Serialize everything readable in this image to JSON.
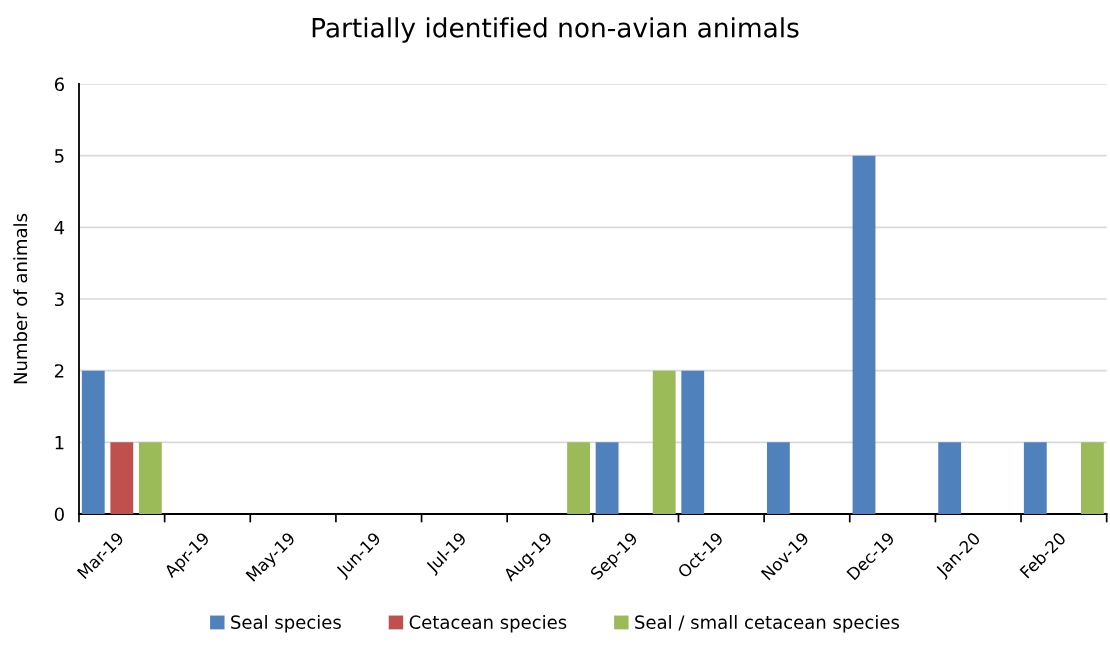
{
  "chart_data": {
    "type": "bar",
    "title": "Partially identified non-avian animals",
    "ylabel": "Number of animals",
    "categories": [
      "Mar-19",
      "Apr-19",
      "May-19",
      "Jun-19",
      "Jul-19",
      "Aug-19",
      "Sep-19",
      "Oct-19",
      "Nov-19",
      "Dec-19",
      "Jan-20",
      "Feb-20"
    ],
    "series": [
      {
        "name": "Seal species",
        "color": "#4f81bd",
        "values": [
          2,
          null,
          null,
          null,
          null,
          null,
          1,
          2,
          1,
          5,
          1,
          1
        ]
      },
      {
        "name": "Cetacean species",
        "color": "#c0504d",
        "values": [
          1,
          null,
          null,
          null,
          null,
          null,
          null,
          null,
          null,
          null,
          null,
          null
        ]
      },
      {
        "name": "Seal / small cetacean species",
        "color": "#9bbb59",
        "values": [
          1,
          null,
          null,
          null,
          null,
          1,
          2,
          null,
          null,
          null,
          null,
          1
        ]
      }
    ],
    "ylim": [
      0,
      6
    ],
    "yticks": [
      0,
      1,
      2,
      3,
      4,
      5,
      6
    ],
    "grid": "y",
    "legend": "bottom"
  }
}
